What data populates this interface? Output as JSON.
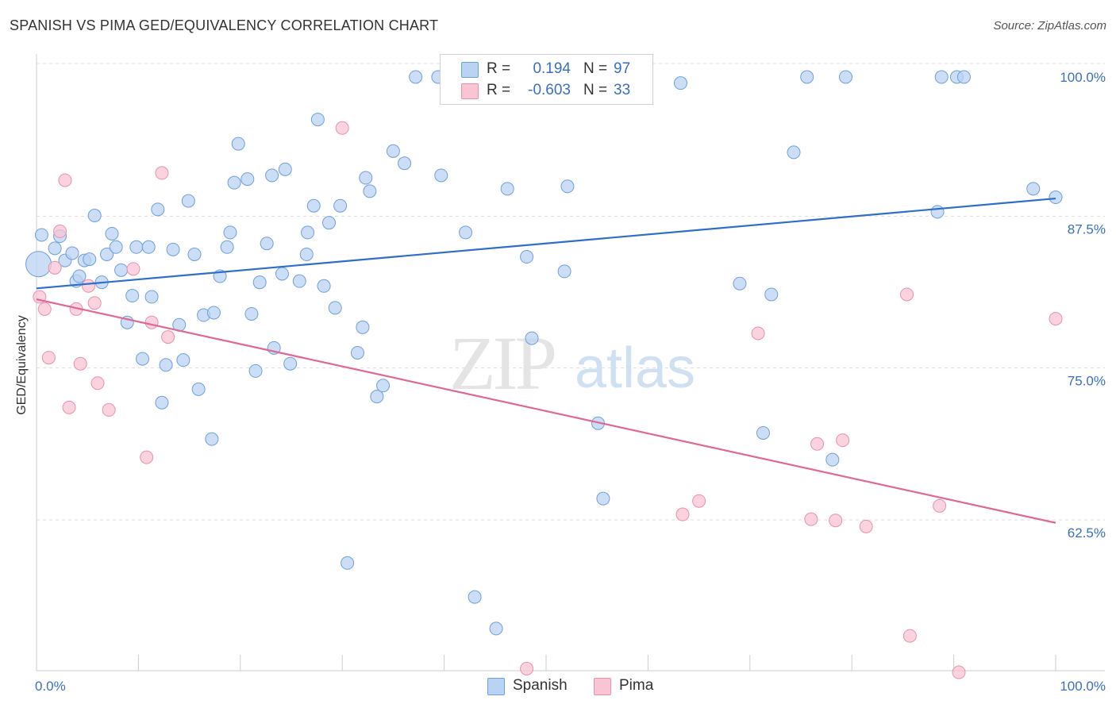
{
  "title": "SPANISH VS PIMA GED/EQUIVALENCY CORRELATION CHART",
  "source": "Source: ZipAtlas.com",
  "watermark": {
    "zip": "ZIP",
    "atlas": "atlas"
  },
  "legend": {
    "rows": [
      {
        "r_label": "R =",
        "r_value": "0.194",
        "n_label": "N =",
        "n_value": "97"
      },
      {
        "r_label": "R =",
        "r_value": "-0.603",
        "n_label": "N =",
        "n_value": "33"
      }
    ]
  },
  "bottom_legend": {
    "spanish": "Spanish",
    "pima": "Pima"
  },
  "colors": {
    "spanish_fill": "#b9d3f3",
    "spanish_stroke": "#6f9fdc",
    "spanish_line": "#2f6fcc",
    "pima_fill": "#f9c4d4",
    "pima_stroke": "#ea8fac",
    "pima_line": "#e06892",
    "tick_label": "#3a6fc4",
    "grid": "#dddddd"
  },
  "chart_data": {
    "type": "scatter",
    "title": "SPANISH VS PIMA GED/EQUIVALENCY CORRELATION CHART",
    "xlabel": "",
    "ylabel": "GED/Equivalency",
    "xlim": [
      0,
      100
    ],
    "ylim": [
      52.5,
      101.5
    ],
    "x_tick_labels": [
      "0.0%",
      "100.0%"
    ],
    "y_ticks": [
      62.5,
      75.0,
      87.5,
      100.0
    ],
    "y_tick_labels": [
      "62.5%",
      "75.0%",
      "87.5%",
      "100.0%"
    ],
    "grid": "horizontal dashed",
    "legend_position": "top-center",
    "series": [
      {
        "name": "Spanish",
        "r": 0.194,
        "n": 97,
        "trend": {
          "x": [
            0,
            100
          ],
          "y": [
            82.6,
            90.0
          ]
        },
        "points": [
          [
            0.2,
            84.6,
            30
          ],
          [
            0.5,
            87.0,
            12
          ],
          [
            1.8,
            85.9,
            10
          ],
          [
            2.3,
            86.9,
            10
          ],
          [
            2.8,
            84.9,
            10
          ],
          [
            3.5,
            85.5,
            10
          ],
          [
            3.9,
            83.2,
            10
          ],
          [
            4.2,
            83.6,
            10
          ],
          [
            4.7,
            84.9,
            10
          ],
          [
            5.2,
            85.0,
            10
          ],
          [
            5.7,
            88.6,
            10
          ],
          [
            6.4,
            83.1,
            10
          ],
          [
            6.9,
            85.4,
            10
          ],
          [
            7.4,
            87.1,
            10
          ],
          [
            7.8,
            86.0,
            10
          ],
          [
            8.3,
            84.1,
            10
          ],
          [
            8.9,
            79.8,
            10
          ],
          [
            9.4,
            82.0,
            10
          ],
          [
            9.8,
            86.0,
            10
          ],
          [
            10.4,
            76.8,
            10
          ],
          [
            11.0,
            86.0,
            10
          ],
          [
            11.3,
            81.9,
            10
          ],
          [
            11.9,
            89.1,
            10
          ],
          [
            12.3,
            73.2,
            10
          ],
          [
            12.7,
            76.3,
            10
          ],
          [
            13.4,
            85.8,
            10
          ],
          [
            14.0,
            79.6,
            10
          ],
          [
            14.4,
            76.7,
            10
          ],
          [
            14.9,
            89.8,
            10
          ],
          [
            15.5,
            85.4,
            10
          ],
          [
            15.9,
            74.3,
            10
          ],
          [
            16.4,
            80.4,
            10
          ],
          [
            17.2,
            70.2,
            10
          ],
          [
            17.4,
            80.6,
            10
          ],
          [
            18.0,
            83.6,
            10
          ],
          [
            18.7,
            86.0,
            10
          ],
          [
            19.0,
            87.2,
            10
          ],
          [
            19.4,
            91.3,
            10
          ],
          [
            19.8,
            94.5,
            10
          ],
          [
            20.7,
            91.6,
            10
          ],
          [
            21.1,
            80.5,
            10
          ],
          [
            21.5,
            75.8,
            10
          ],
          [
            21.9,
            83.1,
            10
          ],
          [
            22.6,
            86.3,
            10
          ],
          [
            23.1,
            91.9,
            10
          ],
          [
            23.3,
            77.7,
            10
          ],
          [
            24.1,
            83.8,
            10
          ],
          [
            24.4,
            92.4,
            10
          ],
          [
            24.9,
            76.4,
            10
          ],
          [
            25.8,
            83.2,
            10
          ],
          [
            26.5,
            85.4,
            10
          ],
          [
            26.6,
            87.2,
            10
          ],
          [
            27.2,
            89.4,
            10
          ],
          [
            27.6,
            96.5,
            10
          ],
          [
            28.2,
            82.8,
            10
          ],
          [
            28.7,
            88.0,
            10
          ],
          [
            29.3,
            81.0,
            10
          ],
          [
            29.8,
            89.4,
            10
          ],
          [
            30.5,
            60.0,
            10
          ],
          [
            31.5,
            77.3,
            10
          ],
          [
            32.0,
            79.4,
            10
          ],
          [
            32.3,
            91.7,
            10
          ],
          [
            32.7,
            90.6,
            10
          ],
          [
            33.4,
            73.7,
            10
          ],
          [
            34.0,
            74.6,
            10
          ],
          [
            35.0,
            93.9,
            10
          ],
          [
            36.1,
            92.9,
            10
          ],
          [
            37.2,
            100.0,
            10
          ],
          [
            39.4,
            100.0,
            10
          ],
          [
            39.7,
            91.9,
            10
          ],
          [
            42.1,
            87.2,
            10
          ],
          [
            43.0,
            57.2,
            10
          ],
          [
            45.1,
            54.6,
            10
          ],
          [
            46.2,
            90.8,
            10
          ],
          [
            48.1,
            85.2,
            10
          ],
          [
            48.6,
            78.5,
            10
          ],
          [
            51.2,
            100.0,
            10
          ],
          [
            51.8,
            84.0,
            10
          ],
          [
            52.1,
            91.0,
            10
          ],
          [
            52.9,
            100.0,
            10
          ],
          [
            55.1,
            71.5,
            10
          ],
          [
            55.6,
            65.3,
            10
          ],
          [
            56.5,
            100.0,
            10
          ],
          [
            63.2,
            99.5,
            10
          ],
          [
            69.0,
            83.0,
            10
          ],
          [
            71.3,
            70.7,
            10
          ],
          [
            72.1,
            82.1,
            10
          ],
          [
            74.3,
            93.8,
            10
          ],
          [
            75.6,
            100.0,
            10
          ],
          [
            78.1,
            68.5,
            10
          ],
          [
            79.4,
            100.0,
            10
          ],
          [
            88.4,
            88.9,
            10
          ],
          [
            88.8,
            100.0,
            10
          ],
          [
            90.3,
            100.0,
            10
          ],
          [
            91.0,
            100.0,
            10
          ],
          [
            97.8,
            90.8,
            10
          ],
          [
            100.0,
            90.1,
            10
          ]
        ]
      },
      {
        "name": "Pima",
        "r": -0.603,
        "n": 33,
        "trend": {
          "x": [
            0,
            100
          ],
          "y": [
            81.7,
            63.3
          ]
        },
        "points": [
          [
            0.3,
            81.9,
            10
          ],
          [
            0.8,
            80.9,
            10
          ],
          [
            1.2,
            76.9,
            10
          ],
          [
            1.8,
            84.3,
            10
          ],
          [
            2.3,
            87.3,
            10
          ],
          [
            2.8,
            91.5,
            10
          ],
          [
            3.2,
            72.8,
            10
          ],
          [
            3.9,
            80.9,
            10
          ],
          [
            4.3,
            76.4,
            10
          ],
          [
            5.1,
            82.8,
            10
          ],
          [
            5.7,
            81.4,
            10
          ],
          [
            6.0,
            74.8,
            10
          ],
          [
            7.1,
            72.6,
            10
          ],
          [
            9.5,
            84.2,
            10
          ],
          [
            10.8,
            68.7,
            10
          ],
          [
            11.3,
            79.8,
            10
          ],
          [
            12.3,
            92.1,
            10
          ],
          [
            12.9,
            78.6,
            10
          ],
          [
            30.0,
            95.8,
            10
          ],
          [
            48.1,
            51.3,
            10
          ],
          [
            63.4,
            64.0,
            10
          ],
          [
            65.0,
            65.1,
            10
          ],
          [
            70.8,
            78.9,
            10
          ],
          [
            76.0,
            63.6,
            10
          ],
          [
            76.6,
            69.8,
            10
          ],
          [
            79.1,
            70.1,
            10
          ],
          [
            78.4,
            63.5,
            10
          ],
          [
            81.4,
            63.0,
            10
          ],
          [
            85.4,
            82.1,
            10
          ],
          [
            85.7,
            54.0,
            10
          ],
          [
            88.6,
            64.7,
            10
          ],
          [
            90.5,
            51.0,
            10
          ],
          [
            100.0,
            80.1,
            10
          ]
        ]
      }
    ]
  }
}
